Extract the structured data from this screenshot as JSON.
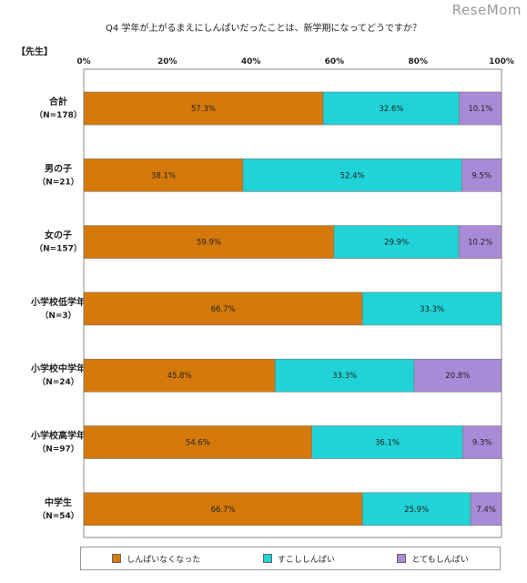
{
  "watermark": "ReseMom",
  "chart_data": {
    "type": "bar",
    "orientation": "horizontal-stacked-100",
    "title": "Q4 学年が上がるまえにしんぱいだったことは、新学期になってどうですか？",
    "group_label": "【先生】",
    "x_ticks": [
      "0%",
      "20%",
      "40%",
      "60%",
      "80%",
      "100%"
    ],
    "xlim": [
      0,
      100
    ],
    "grid": false,
    "legend_position": "bottom",
    "categories": [
      {
        "name": "合計",
        "n": "（N=178）"
      },
      {
        "name": "男の子",
        "n": "（N=21）"
      },
      {
        "name": "女の子",
        "n": "（N=157）"
      },
      {
        "name": "小学校低学年",
        "n": "（N=3）"
      },
      {
        "name": "小学校中学年",
        "n": "（N=24）"
      },
      {
        "name": "小学校高学年",
        "n": "（N=97）"
      },
      {
        "name": "中学生",
        "n": "（N=54）"
      }
    ],
    "series": [
      {
        "name": "しんぱいなくなった",
        "color": "#d4790a",
        "values": [
          57.3,
          38.1,
          59.9,
          66.7,
          45.8,
          54.6,
          66.7
        ],
        "labels": [
          "57.3%",
          "38.1%",
          "59.9%",
          "66.7%",
          "45.8%",
          "54.6%",
          "66.7%"
        ]
      },
      {
        "name": "すこししんぱい",
        "color": "#1fd3d6",
        "values": [
          32.6,
          52.4,
          29.9,
          33.3,
          33.3,
          36.1,
          25.9
        ],
        "labels": [
          "32.6%",
          "52.4%",
          "29.9%",
          "33.3%",
          "33.3%",
          "36.1%",
          "25.9%"
        ]
      },
      {
        "name": "とてもしんぱい",
        "color": "#a98ad6",
        "values": [
          10.1,
          9.5,
          10.2,
          0,
          20.8,
          9.3,
          7.4
        ],
        "labels": [
          "10.1%",
          "9.5%",
          "10.2%",
          "",
          "20.8%",
          "9.3%",
          "7.4%"
        ]
      }
    ]
  }
}
